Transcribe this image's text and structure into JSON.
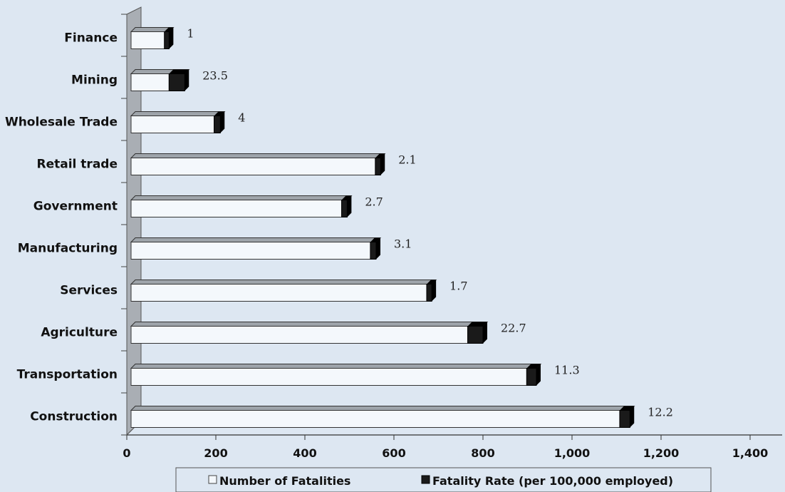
{
  "chart_data": {
    "type": "bar",
    "orientation": "horizontal",
    "categories": [
      "Finance",
      "Mining",
      "Wholesale Trade",
      "Retail trade",
      "Government",
      "Manufacturing",
      "Services",
      "Agriculture",
      "Transportation",
      "Construction"
    ],
    "series": [
      {
        "name": "Number of Fatalities",
        "values": [
          95,
          130,
          210,
          570,
          495,
          560,
          685,
          800,
          920,
          1130
        ],
        "color": "#f4f8fc"
      },
      {
        "name": "Fatality Rate (per 100,000 employed)",
        "values": [
          1,
          23.5,
          4,
          2.1,
          2.7,
          3.1,
          1.7,
          22.7,
          11.3,
          12.2
        ],
        "color": "#1a1a1a"
      }
    ],
    "rate_labels": [
      "1",
      "23.5",
      "4",
      "2.1",
      "2.7",
      "3.1",
      "1.7",
      "22.7",
      "11.3",
      "12.2"
    ],
    "x_ticks": [
      "0",
      "200",
      "400",
      "600",
      "800",
      "1,000",
      "1,200",
      "1,400"
    ],
    "xlim": [
      0,
      1400
    ],
    "legend_position": "bottom",
    "grid": false
  }
}
